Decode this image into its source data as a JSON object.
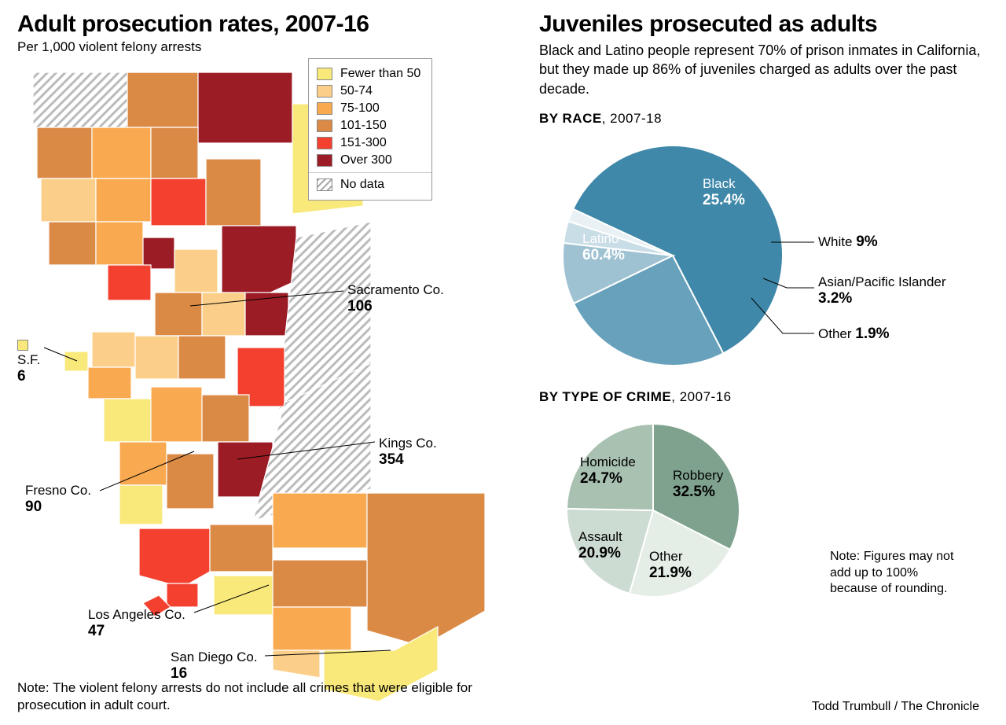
{
  "left": {
    "title": "Adult prosecution rates, 2007-16",
    "subtitle": "Per 1,000 violent felony arrests",
    "note": "Note: The violent felony arrests do not include all crimes that were eligible for prosecution in adult court.",
    "legend": {
      "bins": [
        {
          "label": "Fewer than 50",
          "color": "#f9e97a"
        },
        {
          "label": "50-74",
          "color": "#fbcf8a"
        },
        {
          "label": "75-100",
          "color": "#f9a94f"
        },
        {
          "label": "101-150",
          "color": "#db8a46"
        },
        {
          "label": "151-300",
          "color": "#f3402f"
        },
        {
          "label": "Over 300",
          "color": "#9c1c26"
        }
      ],
      "nodata_label": "No data"
    },
    "callouts": [
      {
        "id": "sf",
        "name": "S.F.",
        "value": "6"
      },
      {
        "id": "sac",
        "name": "Sacramento Co.",
        "value": "106"
      },
      {
        "id": "kings",
        "name": "Kings Co.",
        "value": "354"
      },
      {
        "id": "fresno",
        "name": "Fresno Co.",
        "value": "90"
      },
      {
        "id": "la",
        "name": "Los Angeles Co.",
        "value": "47"
      },
      {
        "id": "sd",
        "name": "San Diego Co.",
        "value": "16"
      }
    ],
    "map_colors": {
      "bin0": "#f9e97a",
      "bin1": "#fbcf8a",
      "bin2": "#f9a94f",
      "bin3": "#db8a46",
      "bin4": "#f3402f",
      "bin5": "#9c1c26"
    }
  },
  "right": {
    "title": "Juveniles prosecuted as adults",
    "intro": "Black and Latino people represent 70% of prison inmates in California, but they made up 86% of juveniles charged as adults over the past decade.",
    "race": {
      "heading": "BY RACE",
      "period": ", 2007-18",
      "radius": 140,
      "slices": [
        {
          "label": "Latino",
          "value": 60.4,
          "color": "#3f88a9",
          "text": "light"
        },
        {
          "label": "Black",
          "value": 25.4,
          "color": "#67a1bb",
          "text": "light"
        },
        {
          "label": "White",
          "value": 9.0,
          "color": "#9fc2d2",
          "text": "dark",
          "pct_display": "9%"
        },
        {
          "label": "Asian/Pacific Islander",
          "value": 3.2,
          "color": "#c9dde6",
          "text": "dark"
        },
        {
          "label": "Other",
          "value": 1.9,
          "color": "#e9f1f4",
          "text": "dark"
        }
      ],
      "start_angle_deg": 295
    },
    "crime": {
      "heading": "BY TYPE OF CRIME",
      "period": ", 2007-16",
      "radius": 110,
      "slices": [
        {
          "label": "Robbery",
          "value": 32.5,
          "color": "#7fa28e"
        },
        {
          "label": "Other",
          "value": 21.9,
          "color": "#e5ede7"
        },
        {
          "label": "Assault",
          "value": 20.9,
          "color": "#cddcd2"
        },
        {
          "label": "Homicide",
          "value": 24.7,
          "color": "#a9c1b1"
        }
      ],
      "start_angle_deg": 0,
      "note": "Note: Figures may not add up to 100% because of rounding."
    },
    "credit": "Todd Trumbull / The Chronicle"
  }
}
